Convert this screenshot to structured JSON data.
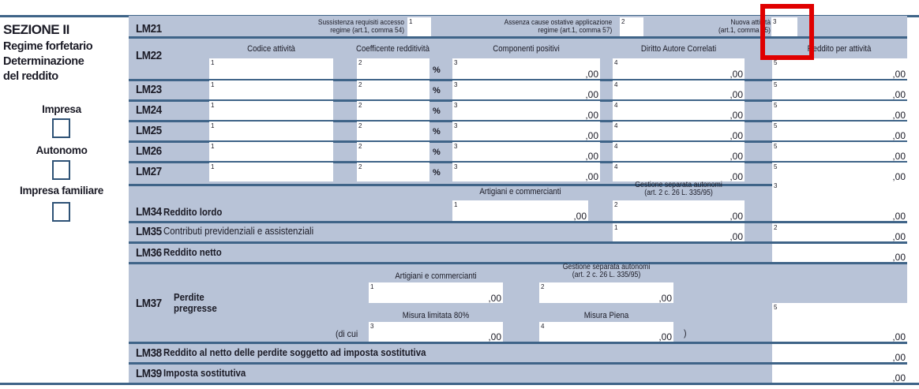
{
  "section": {
    "title": "SEZIONE II",
    "subtitle_lines": [
      "Regime forfetario",
      "Determinazione",
      "del reddito"
    ],
    "checkboxes": [
      {
        "label": "Impresa",
        "checked": false
      },
      {
        "label": "Autonomo",
        "checked": false
      },
      {
        "label": "Impresa familiare",
        "checked": false
      }
    ]
  },
  "lm21": {
    "code": "LM21",
    "f1_label": [
      "Sussistenza requisiti accesso",
      "regime (art.1, comma 54)"
    ],
    "f1_num": "1",
    "f2_label": [
      "Assenza cause ostative applicazione",
      "regime (art.1, comma 57)"
    ],
    "f2_num": "2",
    "f3_label": [
      "Nuova attività",
      "(art.1, comma 65)"
    ],
    "f3_num": "3"
  },
  "activity_headers": [
    "Codice attività",
    "Coefficente redditività",
    "Componenti positivi",
    "Diritto Autore Correlati",
    "Reddito per attività"
  ],
  "activity_rows": [
    {
      "code": "LM22"
    },
    {
      "code": "LM23"
    },
    {
      "code": "LM24"
    },
    {
      "code": "LM25"
    },
    {
      "code": "LM26"
    },
    {
      "code": "LM27"
    }
  ],
  "field_nums": [
    "1",
    "2",
    "3",
    "4",
    "5"
  ],
  "percent": "%",
  "decimals": ",00",
  "lm34": {
    "code": "LM34",
    "label": "Reddito lordo",
    "h1": "Artigiani e commercianti",
    "h2a": "Gestione separata autonomi",
    "h2b": "(art. 2 c. 26 L. 335/95)"
  },
  "lm35": {
    "code": "LM35",
    "label": "Contributi previdenziali e assistenziali"
  },
  "lm36": {
    "code": "LM36",
    "label": "Reddito netto"
  },
  "lm37": {
    "code": "LM37",
    "label1": "Perdite",
    "label2": "pregresse",
    "h1": "Artigiani e commercianti",
    "h2a": "Gestione separata autonomi",
    "h2b": "(art. 2 c. 26 L. 335/95)",
    "h3": "Misura limitata 80%",
    "h4": "Misura Piena",
    "dicui": "(di cui",
    "close": ")"
  },
  "lm38": {
    "code": "LM38",
    "label": "Reddito al netto delle perdite soggetto ad imposta sostitutiva"
  },
  "lm39": {
    "code": "LM39",
    "label": "Imposta sostitutiva"
  },
  "highlight_color": "#e00000"
}
